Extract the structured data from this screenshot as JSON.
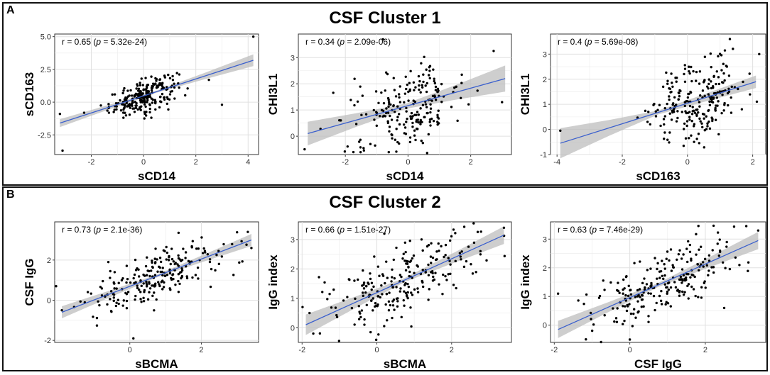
{
  "panels": [
    {
      "letter": "A",
      "title": "CSF Cluster 1"
    },
    {
      "letter": "B",
      "title": "CSF Cluster 2"
    }
  ],
  "colors": {
    "points": "#000000",
    "fit_line": "#3a5fcd",
    "ci_band": "#bdbdbd",
    "grid": "#ebebeb",
    "panel_border": "#111111"
  },
  "chart_data": [
    {
      "type": "scatter",
      "panel": "A",
      "xlabel": "sCD14",
      "ylabel": "sCD163",
      "annotation": {
        "r": "0.65",
        "p": "5.32e-24"
      },
      "xlim": [
        -3.4,
        4.4
      ],
      "ylim": [
        -4.0,
        5.2
      ],
      "xticks": [
        -2,
        0,
        2,
        4
      ],
      "xtick_labels": [
        "-2",
        "0",
        "2",
        "4"
      ],
      "yticks": [
        -2.5,
        0.0,
        2.5,
        5.0
      ],
      "ytick_labels": [
        "-2.5",
        "0.0",
        "2.5",
        "5.0"
      ],
      "fit": {
        "x": [
          -3.2,
          4.2
        ],
        "y": [
          -1.6,
          3.2
        ]
      },
      "ci_halfwidth": [
        0.3,
        0.08,
        0.45
      ],
      "points": {
        "n": 230,
        "x_mean": 0,
        "x_sd": 0.65,
        "slope": 0.65,
        "intercept": 0.45,
        "noise_sd": 0.6
      },
      "extra_points": [
        [
          -3.1,
          -3.7
        ],
        [
          4.2,
          5.0
        ],
        [
          -3.2,
          -0.9
        ],
        [
          2.5,
          1.7
        ],
        [
          3.0,
          -0.2
        ]
      ]
    },
    {
      "type": "scatter",
      "panel": "A",
      "xlabel": "sCD14",
      "ylabel": "CHI3L1",
      "annotation": {
        "r": "0.34",
        "p": "2.09e-06"
      },
      "xlim": [
        -3.5,
        3.3
      ],
      "ylim": [
        -0.7,
        3.9
      ],
      "xticks": [
        -2,
        0,
        2
      ],
      "xtick_labels": [
        "-2",
        "0",
        "2"
      ],
      "yticks": [
        0,
        1,
        2,
        3
      ],
      "ytick_labels": [
        "0",
        "1",
        "2",
        "3"
      ],
      "fit": {
        "x": [
          -3.2,
          3.1
        ],
        "y": [
          0.1,
          2.2
        ]
      },
      "ci_halfwidth": [
        0.45,
        0.1,
        0.5
      ],
      "points": {
        "n": 220,
        "x_mean": 0,
        "x_sd": 0.9,
        "slope": 0.33,
        "intercept": 1.1,
        "noise_sd": 0.75
      },
      "extra_points": [
        [
          -3.3,
          -0.5
        ],
        [
          3.0,
          1.3
        ],
        [
          -0.8,
          3.7
        ],
        [
          -1.2,
          -0.3
        ]
      ]
    },
    {
      "type": "scatter",
      "panel": "A",
      "xlabel": "sCD163",
      "ylabel": "CHI3L1",
      "annotation": {
        "r": "0.4",
        "p": "5.69e-08"
      },
      "xlim": [
        -4.2,
        2.4
      ],
      "ylim": [
        -1.0,
        3.8
      ],
      "xticks": [
        -4,
        -2,
        0,
        2
      ],
      "xtick_labels": [
        "-4",
        "-2",
        "0",
        "2"
      ],
      "yticks": [
        -1,
        0,
        1,
        2,
        3
      ],
      "ytick_labels": [
        "-1",
        "0",
        "1",
        "2",
        "3"
      ],
      "fit": {
        "x": [
          -3.9,
          2.1
        ],
        "y": [
          -0.55,
          1.9
        ]
      },
      "ci_halfwidth": [
        0.6,
        0.08,
        0.25
      ],
      "points": {
        "n": 230,
        "x_mean": 0.35,
        "x_sd": 0.7,
        "slope": 0.4,
        "intercept": 1.05,
        "noise_sd": 0.8
      },
      "extra_points": [
        [
          -3.9,
          -0.05
        ],
        [
          1.3,
          3.6
        ],
        [
          2.2,
          3.0
        ],
        [
          -1.2,
          0.7
        ]
      ]
    },
    {
      "type": "scatter",
      "panel": "B",
      "xlabel": "sBCMA",
      "ylabel": "CSF IgG",
      "annotation": {
        "r": "0.73",
        "p": "2.1e-36"
      },
      "xlim": [
        -2.1,
        3.6
      ],
      "ylim": [
        -2.1,
        3.9
      ],
      "xticks": [
        0,
        2
      ],
      "xtick_labels": [
        "0",
        "2"
      ],
      "yticks": [
        -2,
        0,
        2
      ],
      "ytick_labels": [
        "-2",
        "0",
        "2"
      ],
      "fit": {
        "x": [
          -1.9,
          3.4
        ],
        "y": [
          -0.6,
          3.0
        ]
      },
      "ci_halfwidth": [
        0.3,
        0.07,
        0.3
      ],
      "points": {
        "n": 230,
        "x_mean": 0.8,
        "x_sd": 1.0,
        "slope": 0.68,
        "intercept": 0.7,
        "noise_sd": 0.65
      },
      "extra_points": [
        [
          -1.9,
          -0.5
        ],
        [
          0.1,
          -1.9
        ],
        [
          -0.6,
          1.9
        ],
        [
          3.4,
          2.6
        ],
        [
          3.3,
          3.4
        ]
      ]
    },
    {
      "type": "scatter",
      "panel": "B",
      "xlabel": "sBCMA",
      "ylabel": "IgG index",
      "annotation": {
        "r": "0.66",
        "p": "1.51e-27"
      },
      "xlim": [
        -2.1,
        3.6
      ],
      "ylim": [
        -0.5,
        3.6
      ],
      "xticks": [
        -2,
        0,
        2
      ],
      "xtick_labels": [
        "-2",
        "0",
        "2"
      ],
      "yticks": [
        0,
        1,
        2,
        3
      ],
      "ytick_labels": [
        "0",
        "1",
        "2",
        "3"
      ],
      "fit": {
        "x": [
          -1.9,
          3.4
        ],
        "y": [
          0.1,
          3.15
        ]
      },
      "ci_halfwidth": [
        0.35,
        0.07,
        0.3
      ],
      "points": {
        "n": 230,
        "x_mean": 0.7,
        "x_sd": 1.0,
        "slope": 0.57,
        "intercept": 1.2,
        "noise_sd": 0.6
      },
      "extra_points": [
        [
          -1.8,
          0.5
        ],
        [
          3.4,
          3.4
        ],
        [
          -1.7,
          -0.2
        ],
        [
          0.2,
          3.2
        ]
      ]
    },
    {
      "type": "scatter",
      "panel": "B",
      "xlabel": "CSF IgG",
      "ylabel": "IgG index",
      "annotation": {
        "r": "0.63",
        "p": "7.46e-29"
      },
      "xlim": [
        -2.1,
        3.6
      ],
      "ylim": [
        -0.6,
        3.6
      ],
      "xticks": [
        -2,
        0,
        2
      ],
      "xtick_labels": [
        "-2",
        "0",
        "2"
      ],
      "yticks": [
        0,
        1,
        2,
        3
      ],
      "ytick_labels": [
        "0",
        "1",
        "2",
        "3"
      ],
      "fit": {
        "x": [
          -1.9,
          3.4
        ],
        "y": [
          -0.15,
          2.95
        ]
      },
      "ci_halfwidth": [
        0.3,
        0.07,
        0.3
      ],
      "points": {
        "n": 230,
        "x_mean": 0.9,
        "x_sd": 0.95,
        "slope": 0.59,
        "intercept": 0.98,
        "noise_sd": 0.6
      },
      "extra_points": [
        [
          -1.9,
          1.1
        ],
        [
          0.0,
          -0.5
        ],
        [
          3.4,
          3.3
        ],
        [
          2.5,
          0.6
        ]
      ]
    }
  ]
}
